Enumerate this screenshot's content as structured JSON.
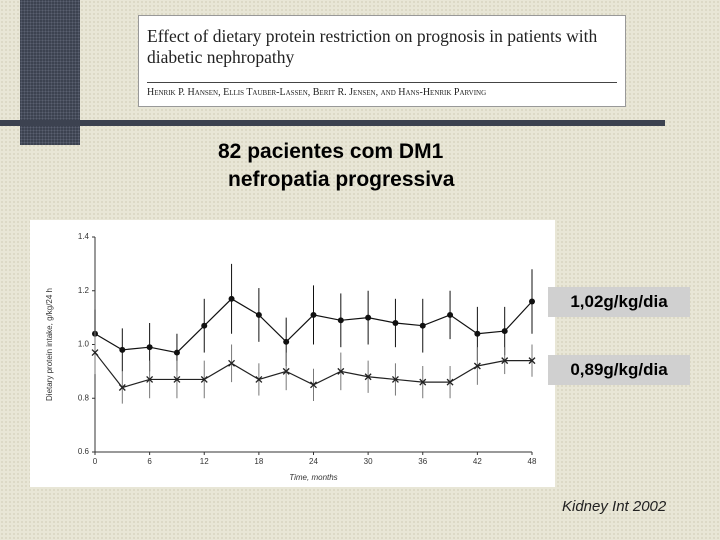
{
  "slide": {
    "paper_title": "Effect of dietary protein restriction on prognosis in patients with diabetic nephropathy",
    "paper_authors": "Henrik P. Hansen, Ellis Tauber-Lassen, Berit R. Jensen, and Hans-Henrik Parving",
    "heading": [
      "82 pacientes com DM1",
      "nefropatia progressiva"
    ],
    "callouts": [
      "1,02g/kg/dia",
      "0,89g/kg/dia"
    ],
    "source": "Kidney Int 2002"
  },
  "chart_data": {
    "type": "line",
    "x_label": "Time, months",
    "y_label": "Dietary protein intake, g/kg/24 h",
    "x": [
      0,
      3,
      6,
      9,
      12,
      15,
      18,
      21,
      24,
      27,
      30,
      33,
      36,
      39,
      42,
      45,
      48
    ],
    "xlim": [
      0,
      48
    ],
    "xticks": [
      0,
      6,
      12,
      18,
      24,
      30,
      36,
      42,
      48
    ],
    "ylim": [
      0.6,
      1.4
    ],
    "yticks": [
      0.6,
      0.8,
      {
        "value": 1,
        "label": "1.0"
      },
      1.2,
      1.4
    ],
    "series": [
      {
        "marker": "circle",
        "color": "#111111",
        "error_color": "#111111",
        "values": [
          1.04,
          0.98,
          0.99,
          0.97,
          1.07,
          1.17,
          1.11,
          1.01,
          1.11,
          1.09,
          1.1,
          1.08,
          1.07,
          1.11,
          1.04,
          1.05,
          1.16
        ],
        "errors": [
          0.09,
          0.08,
          0.09,
          0.07,
          0.1,
          0.13,
          0.1,
          0.09,
          0.11,
          0.1,
          0.1,
          0.09,
          0.1,
          0.09,
          0.1,
          0.09,
          0.12
        ]
      },
      {
        "marker": "cross",
        "color": "#222222",
        "error_color": "#777777",
        "values": [
          0.97,
          0.84,
          0.87,
          0.87,
          0.87,
          0.93,
          0.87,
          0.9,
          0.85,
          0.9,
          0.88,
          0.87,
          0.86,
          0.86,
          0.92,
          0.94,
          0.94
        ],
        "errors": [
          0.08,
          0.06,
          0.07,
          0.07,
          0.07,
          0.07,
          0.06,
          0.07,
          0.06,
          0.07,
          0.06,
          0.06,
          0.06,
          0.06,
          0.07,
          0.05,
          0.06
        ]
      }
    ]
  }
}
